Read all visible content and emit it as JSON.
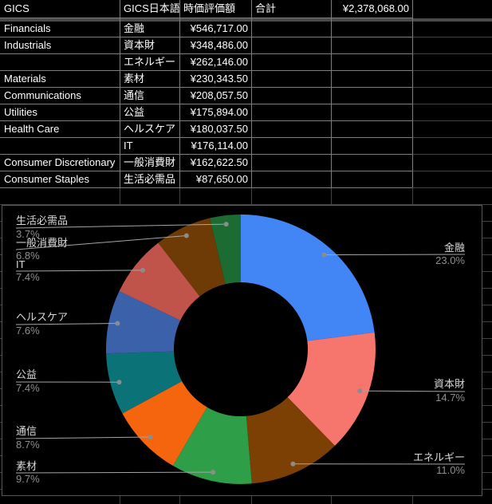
{
  "table": {
    "headers": [
      "GICS",
      "GICS日本語",
      "時価評価額",
      "合計"
    ],
    "total_value": "¥2,378,068.00",
    "rows": [
      [
        "Financials",
        "金融",
        "¥546,717.00"
      ],
      [
        "Industrials",
        "資本財",
        "¥348,486.00"
      ],
      [
        "",
        "エネルギー",
        "¥262,146.00"
      ],
      [
        "Materials",
        "素材",
        "¥230,343.50"
      ],
      [
        "Communications",
        "通信",
        "¥208,057.50"
      ],
      [
        "Utilities",
        "公益",
        "¥175,894.00"
      ],
      [
        "Health Care",
        "ヘルスケア",
        "¥180,037.50"
      ],
      [
        "",
        "IT",
        "¥176,114.00"
      ],
      [
        "Consumer Discretionary",
        "一般消費財",
        "¥162,622.50"
      ],
      [
        "Consumer Staples",
        "生活必需品",
        "¥87,650.00"
      ]
    ]
  },
  "chart_data": {
    "type": "pie",
    "subtype": "donut",
    "hole_ratio": 0.5,
    "title": "",
    "legend_position": "none",
    "labeling": "leader-lines with category name and percent",
    "labels": [
      "金融",
      "資本財",
      "エネルギー",
      "素材",
      "通信",
      "公益",
      "ヘルスケア",
      "IT",
      "一般消費財",
      "生活必需品"
    ],
    "values_pct": [
      23.0,
      14.7,
      11.0,
      9.7,
      8.7,
      7.4,
      7.6,
      7.4,
      6.8,
      3.7
    ],
    "values_yen": [
      546717,
      348486,
      262146,
      230343.5,
      208057.5,
      175894,
      180037.5,
      176114,
      162622.5,
      87650
    ],
    "total_yen": 2378068,
    "colors": [
      "#4285F4",
      "#F6756C",
      "#7D4004",
      "#2E9E49",
      "#F4650D",
      "#0B7277",
      "#3B61AB",
      "#C0544B",
      "#6E3A06",
      "#1B6B33"
    ],
    "background": "#000000"
  }
}
